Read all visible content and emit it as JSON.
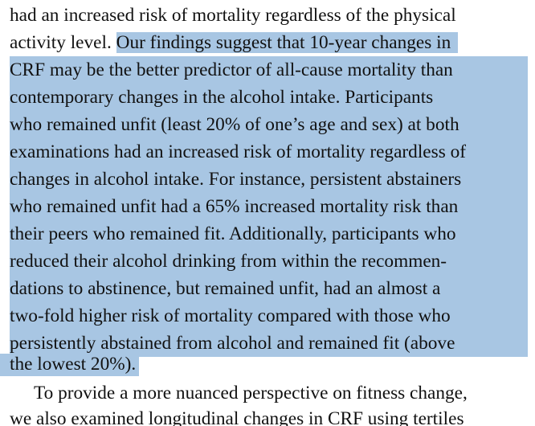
{
  "paragraph1": {
    "line1": "had an increased risk of mortality regardless of the physical",
    "line2_plain": "activity level.",
    "line2_highlight": "Our findings suggest that 10-year changes in",
    "highlighted_lines": [
      "CRF may be the better predictor of all-cause mortality than",
      "contemporary changes in the alcohol intake. Participants",
      "who remained unfit (least 20% of one’s age and sex) at both",
      "examinations had an increased risk of mortality regardless of",
      "changes in alcohol intake. For instance, persistent abstainers",
      "who remained unfit had a 65% increased mortality risk than",
      "their peers who remained fit. Additionally, participants who",
      "reduced their alcohol drinking from within the recommen-",
      "dations to abstinence, but remained unfit, had an almost a",
      "two-fold higher risk of mortality compared with those who",
      "persistently abstained from alcohol and remained fit (above"
    ],
    "last_highlight": "the lowest 20%)."
  },
  "paragraph2": {
    "line1": "To provide a more nuanced perspective on fitness change,",
    "line2": "we also examined longitudinal changes in CRF using tertiles"
  },
  "colors": {
    "highlight": "#a8c6e3",
    "text": "#111111",
    "background": "#ffffff"
  }
}
